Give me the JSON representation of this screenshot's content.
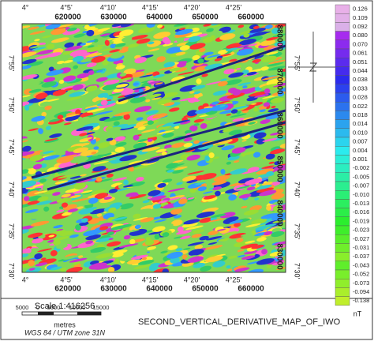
{
  "map": {
    "top_degrees": [
      "4°",
      "4°5'",
      "4°10'",
      "4°15'",
      "4°20'",
      "4°25'"
    ],
    "top_eastings": [
      "620000",
      "630000",
      "640000",
      "650000",
      "660000"
    ],
    "bottom_degrees": [
      "4°",
      "4°5'",
      "4°10'",
      "4°15'",
      "4°20'",
      "4°25'"
    ],
    "bottom_eastings": [
      "620000",
      "630000",
      "640000",
      "650000",
      "660000"
    ],
    "left_degrees": [
      "7°55'",
      "7°50'",
      "7°45'",
      "7°40'",
      "7°35'",
      "7°30'"
    ],
    "right_degrees": [
      "7°55'",
      "7°50'",
      "7°45'",
      "7°40'",
      "7°35'",
      "7°30'"
    ],
    "northings": [
      "880000",
      "870000",
      "860000",
      "850000",
      "840000",
      "830000"
    ]
  },
  "colorbar": {
    "labels": [
      "0.126",
      "0.109",
      "0.092",
      "0.080",
      "0.070",
      "0.061",
      "0.051",
      "0.044",
      "0.038",
      "0.033",
      "0.028",
      "0.022",
      "0.018",
      "0.014",
      "0.010",
      "0.007",
      "0.004",
      "0.001",
      "-0.002",
      "-0.005",
      "-0.007",
      "-0.010",
      "-0.013",
      "-0.016",
      "-0.019",
      "-0.023",
      "-0.027",
      "-0.031",
      "-0.037",
      "-0.043",
      "-0.052",
      "-0.073",
      "-0.094",
      "-0.138"
    ],
    "unit": "nT"
  },
  "scale": {
    "text": "Scale 1:416256",
    "bar_labels": [
      "5000",
      "0",
      "5000",
      "10000",
      "15000"
    ],
    "unit": "metres",
    "projection": "WGS 84 / UTM zone 31N"
  },
  "title": "SECOND_VERTICAL_DERIVATIVE_MAP_OF_IWO"
}
